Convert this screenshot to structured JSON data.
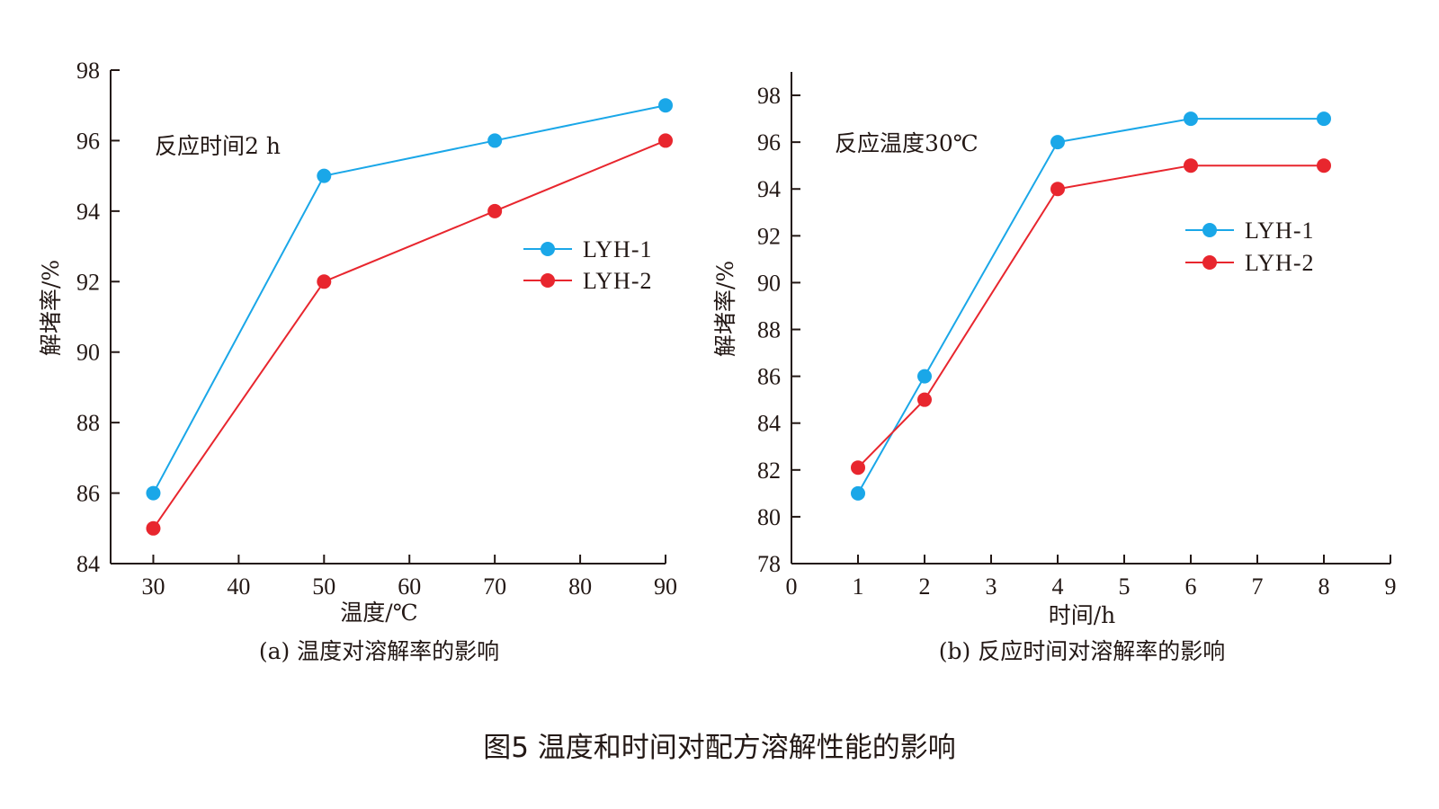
{
  "figure_title": "图5  温度和时间对配方溶解性能的影响",
  "colors": {
    "LYH-1": "#1aa7e8",
    "LYH-2": "#e8262e",
    "axis": "#231815"
  },
  "chart_data": [
    {
      "type": "line",
      "annotation": "反应时间2 h",
      "xlabel": "温度/℃",
      "ylabel": "解堵率/%",
      "caption": "(a) 温度对溶解率的影响",
      "xlim": [
        25,
        90
      ],
      "ylim": [
        84,
        98
      ],
      "xticks": [
        30,
        40,
        50,
        60,
        70,
        80,
        90
      ],
      "yticks": [
        84,
        86,
        88,
        90,
        92,
        94,
        96,
        98
      ],
      "legend_position": "right-middle",
      "grid": false,
      "series": [
        {
          "name": "LYH-1",
          "color": "#1aa7e8",
          "x": [
            30,
            50,
            70,
            90
          ],
          "y": [
            86,
            95,
            96,
            97
          ]
        },
        {
          "name": "LYH-2",
          "color": "#e8262e",
          "x": [
            30,
            50,
            70,
            90
          ],
          "y": [
            85,
            92,
            94,
            96
          ]
        }
      ]
    },
    {
      "type": "line",
      "annotation": "反应温度30℃",
      "xlabel": "时间/h",
      "ylabel": "解堵率/%",
      "caption": "(b) 反应时间对溶解率的影响",
      "xlim": [
        0,
        9
      ],
      "ylim": [
        78,
        99
      ],
      "xticks": [
        0,
        1,
        2,
        3,
        4,
        5,
        6,
        7,
        8,
        9
      ],
      "yticks": [
        78,
        80,
        82,
        84,
        86,
        88,
        90,
        92,
        94,
        96,
        98
      ],
      "legend_position": "top-right",
      "grid": false,
      "series": [
        {
          "name": "LYH-1",
          "color": "#1aa7e8",
          "x": [
            1,
            2,
            4,
            6,
            8
          ],
          "y": [
            81,
            86,
            96,
            97,
            97
          ]
        },
        {
          "name": "LYH-2",
          "color": "#e8262e",
          "x": [
            1,
            2,
            4,
            6,
            8
          ],
          "y": [
            82.1,
            85,
            94,
            95,
            95
          ]
        }
      ]
    }
  ]
}
